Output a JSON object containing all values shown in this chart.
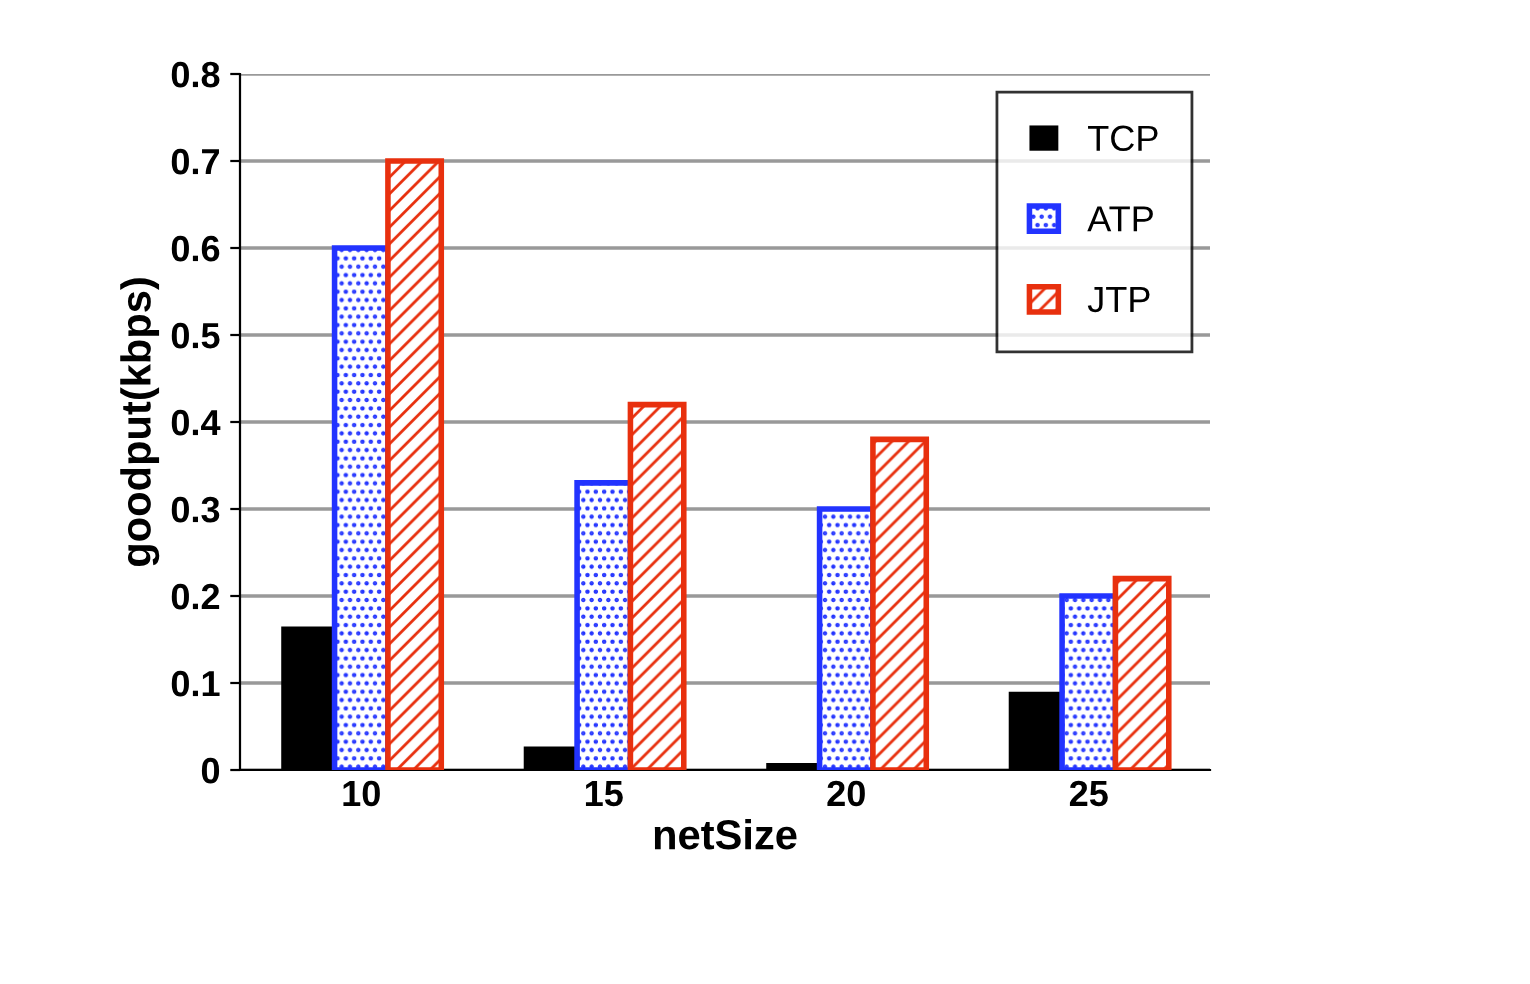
{
  "chart_data": {
    "type": "bar",
    "xlabel": "netSize",
    "ylabel": "goodput(kbps)",
    "categories": [
      "10",
      "15",
      "20",
      "25"
    ],
    "series": [
      {
        "name": "TCP",
        "color": "#000000",
        "values": [
          0.165,
          0.027,
          0.008,
          0.09
        ]
      },
      {
        "name": "ATP",
        "color": "#2233ff",
        "values": [
          0.6,
          0.33,
          0.3,
          0.2
        ]
      },
      {
        "name": "JTP",
        "color": "#e8300e",
        "values": [
          0.7,
          0.42,
          0.38,
          0.22
        ]
      }
    ],
    "ylim": [
      0,
      0.8
    ],
    "yticks": [
      0,
      0.1,
      0.2,
      0.3,
      0.4,
      0.5,
      0.6,
      0.7,
      0.8
    ],
    "grid": "y",
    "legend": "top right"
  }
}
